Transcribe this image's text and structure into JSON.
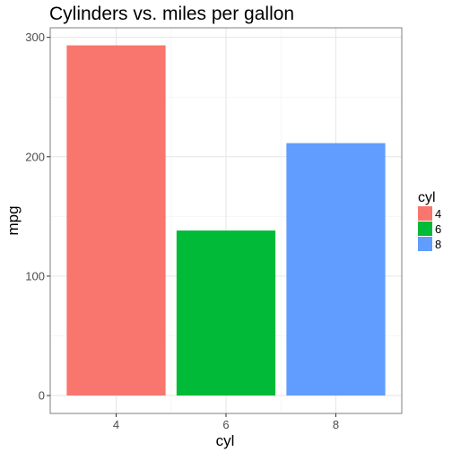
{
  "chart_data": {
    "type": "bar",
    "title": "Cylinders vs. miles per gallon",
    "xlabel": "cyl",
    "ylabel": "mpg",
    "categories": [
      "4",
      "6",
      "8"
    ],
    "values": [
      293.3,
      138.2,
      211.4
    ],
    "colors": [
      "#F8766D",
      "#00BA38",
      "#619CFF"
    ],
    "ylim": [
      -15.0,
      308.0
    ],
    "y_ticks": [
      0,
      100,
      200,
      300
    ],
    "grid": true,
    "legend": {
      "title": "cyl",
      "position": "right",
      "entries": [
        "4",
        "6",
        "8"
      ]
    }
  }
}
